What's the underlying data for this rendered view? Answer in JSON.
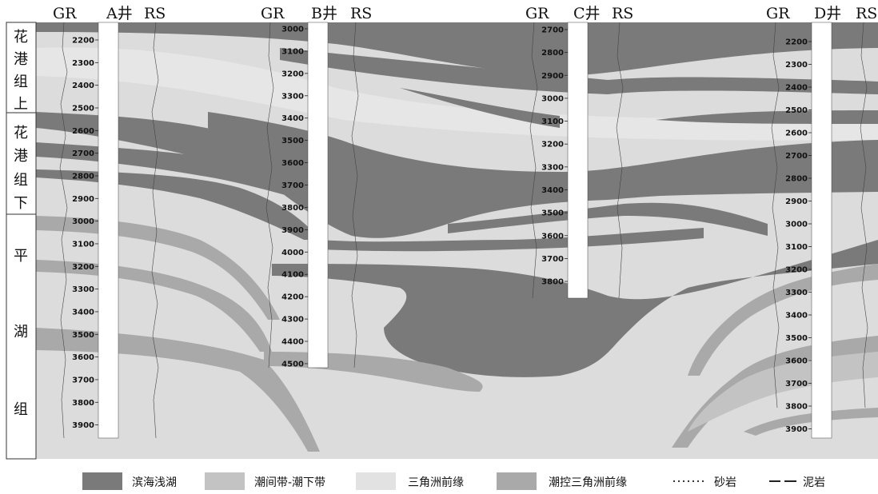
{
  "colors": {
    "coastal_shallow_lake": "#7a7a7a",
    "intertidal_subtidal": "#c3c3c3",
    "delta_front": "#e2e2e2",
    "tide_controlled_delta_front": "#a9a9a9",
    "background": "#dcdcdc"
  },
  "formations": [
    {
      "chars": [
        "花",
        "港",
        "组",
        "上"
      ]
    },
    {
      "chars": [
        "花",
        "港",
        "组",
        "下"
      ]
    },
    {
      "chars": [
        "平",
        "湖",
        "组"
      ]
    }
  ],
  "wells": [
    {
      "name": "A井",
      "gr": "GR",
      "rs": "RS",
      "depths": [
        "2200",
        "2300",
        "2400",
        "2500",
        "2600",
        "2700",
        "2800",
        "2900",
        "3000",
        "3100",
        "3200",
        "3300",
        "3400",
        "3500",
        "3600",
        "3700",
        "3800",
        "3900"
      ]
    },
    {
      "name": "B井",
      "gr": "GR",
      "rs": "RS",
      "depths": [
        "3000",
        "3100",
        "3200",
        "3300",
        "3400",
        "3500",
        "3600",
        "3700",
        "3800",
        "3900",
        "4000",
        "4100",
        "4200",
        "4300",
        "4400",
        "4500"
      ]
    },
    {
      "name": "C井",
      "gr": "GR",
      "rs": "RS",
      "depths": [
        "2700",
        "2800",
        "2900",
        "3000",
        "3100",
        "3200",
        "3300",
        "3400",
        "3500",
        "3600",
        "3700",
        "3800"
      ]
    },
    {
      "name": "D井",
      "gr": "GR",
      "rs": "RS",
      "depths": [
        "2200",
        "2300",
        "2400",
        "2500",
        "2600",
        "2700",
        "2800",
        "2900",
        "3000",
        "3100",
        "3200",
        "3300",
        "3400",
        "3500",
        "3600",
        "3700",
        "3800",
        "3900"
      ]
    }
  ],
  "legend": [
    {
      "label": "滨海浅湖",
      "swatch": "coastal_shallow_lake"
    },
    {
      "label": "潮间带-潮下带",
      "swatch": "intertidal_subtidal"
    },
    {
      "label": "三角洲前缘",
      "swatch": "delta_front"
    },
    {
      "label": "潮控三角洲前缘",
      "swatch": "tide_controlled_delta_front"
    },
    {
      "label": "砂岩",
      "swatch": "sandstone-dots"
    },
    {
      "label": "泥岩",
      "swatch": "mudstone-dashes"
    }
  ]
}
